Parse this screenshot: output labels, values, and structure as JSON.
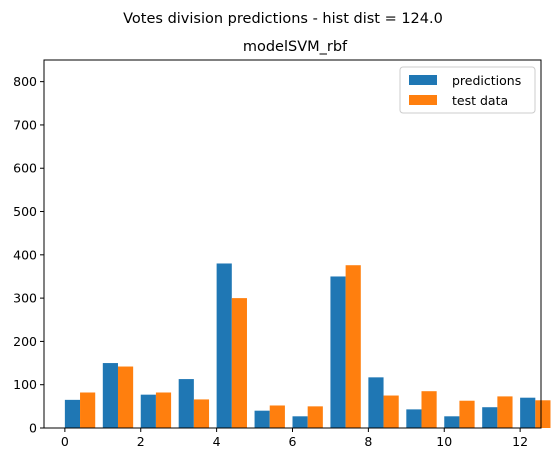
{
  "chart_data": {
    "type": "bar",
    "suptitle": "Votes division predictions - hist dist = 124.0",
    "title": "modelSVM_rbf",
    "xlabel": "",
    "ylabel": "",
    "xlim": [
      -0.55,
      12.55
    ],
    "ylim": [
      0,
      850
    ],
    "xticks": [
      0,
      2,
      4,
      6,
      8,
      10,
      12
    ],
    "yticks": [
      0,
      100,
      200,
      300,
      400,
      500,
      600,
      700,
      800
    ],
    "x": [
      0,
      1,
      2,
      3,
      4,
      5,
      6,
      7,
      8,
      9,
      10,
      11,
      12
    ],
    "bar_width": 0.4,
    "grid": false,
    "legend_position": "top-right",
    "series": [
      {
        "name": "predictions",
        "color": "#1f77b4",
        "values": [
          65,
          150,
          77,
          113,
          380,
          40,
          27,
          350,
          117,
          43,
          27,
          48,
          70
        ]
      },
      {
        "name": "test data",
        "color": "#ff7f0e",
        "values": [
          82,
          142,
          82,
          66,
          300,
          52,
          50,
          376,
          75,
          85,
          63,
          73,
          64
        ]
      }
    ]
  }
}
